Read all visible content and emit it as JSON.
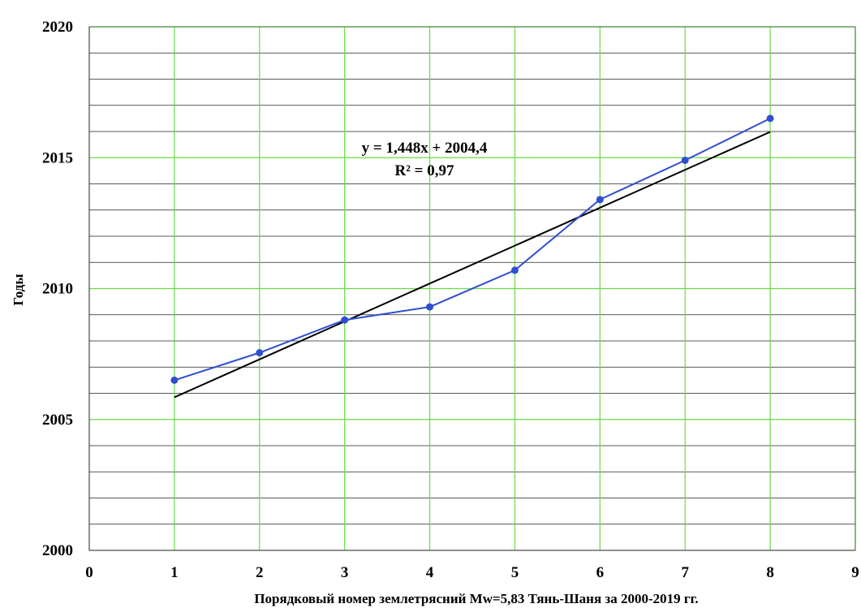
{
  "chart_data": {
    "type": "scatter",
    "title": "",
    "xlabel": "Порядковый номер землетрясний  Mw=5,83 Тянь-Шаня за 2000-2019 гг.",
    "ylabel": "Годы",
    "xlim": [
      0,
      9
    ],
    "ylim": [
      2000,
      2020
    ],
    "x_ticks": [
      "0",
      "1",
      "2",
      "3",
      "4",
      "5",
      "6",
      "7",
      "8",
      "9"
    ],
    "y_ticks": [
      "2000",
      "2005",
      "2010",
      "2015",
      "2020"
    ],
    "grid": true,
    "series": [
      {
        "x": [
          1,
          2,
          3,
          4,
          5,
          6,
          7,
          8
        ],
        "values": [
          2006.5,
          2007.55,
          2008.8,
          2009.3,
          2010.7,
          2013.4,
          2014.9,
          2016.5
        ],
        "color": "#2f4fd0",
        "mode": "lines+markers"
      }
    ],
    "trendline": {
      "type": "linear",
      "slope": 1.448,
      "intercept": 2004.4,
      "x_range": [
        1,
        8
      ],
      "color": "#000000",
      "equation_label": "y = 1,448x + 2004,4",
      "r2_label": "R² = 0,97"
    },
    "colors": {
      "major_grid": "#66dd44",
      "minor_grid": "#222222",
      "axis": "#222222"
    }
  }
}
